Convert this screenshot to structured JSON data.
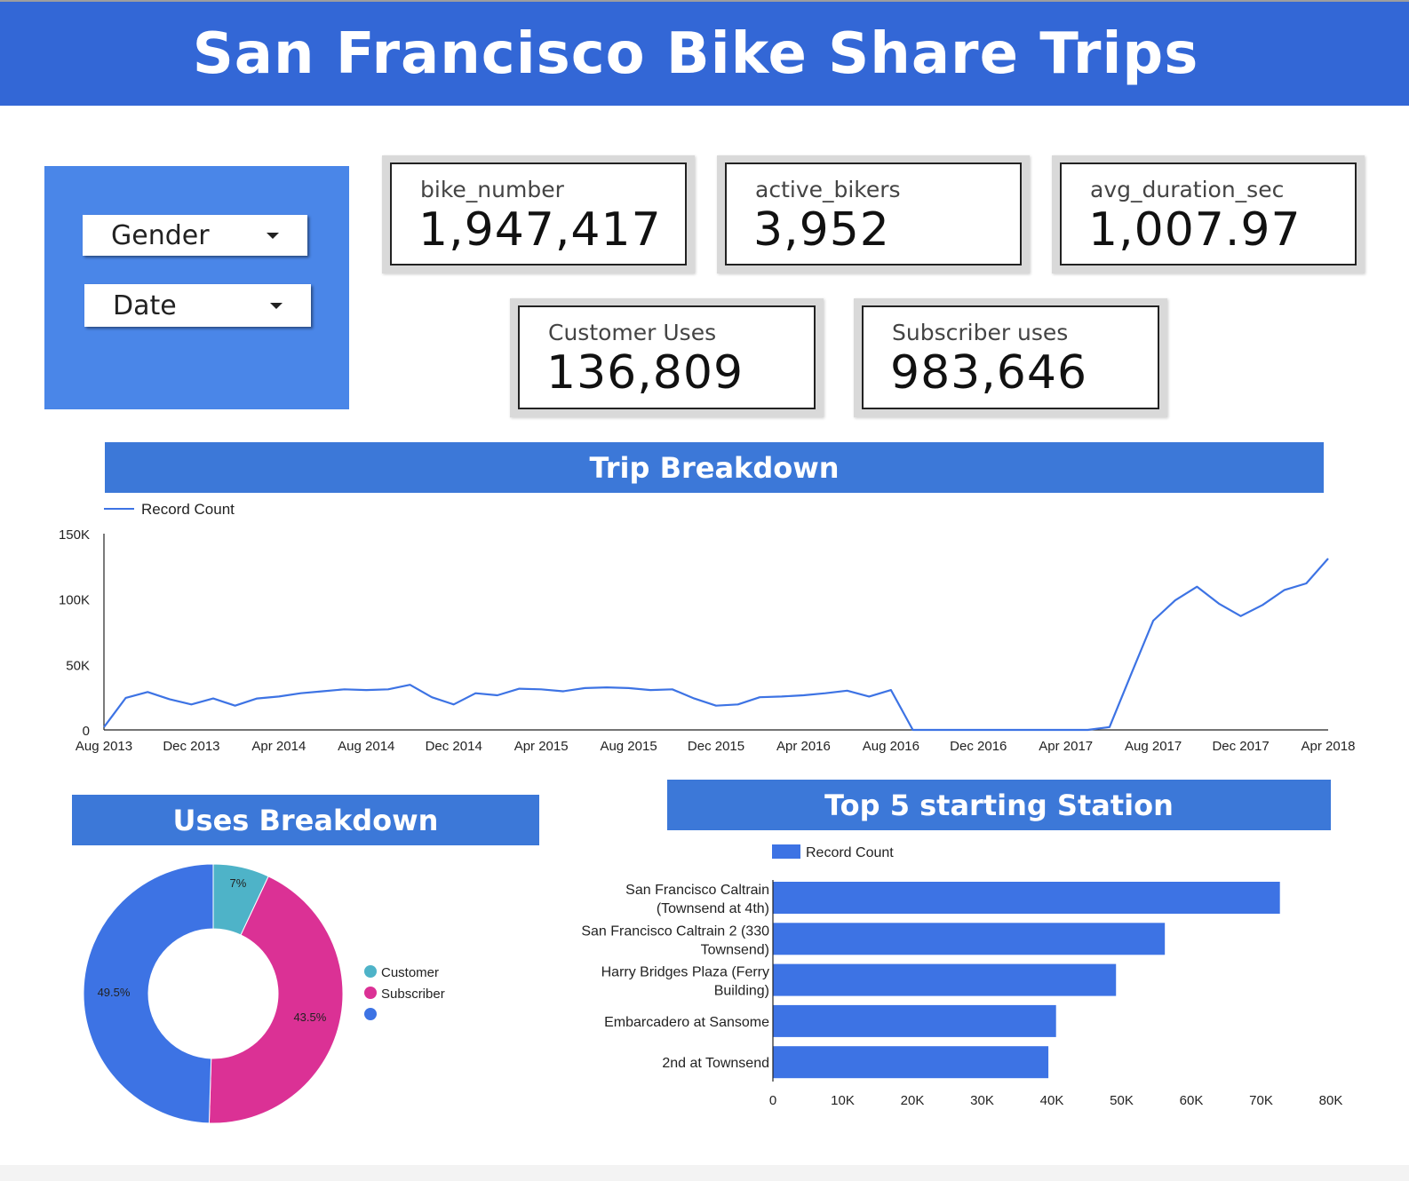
{
  "header": {
    "title": "San Francisco Bike Share Trips"
  },
  "filters": {
    "gender_label": "Gender",
    "date_label": "Date"
  },
  "kpis": [
    {
      "label": "bike_number",
      "value": "1,947,417"
    },
    {
      "label": "active_bikers",
      "value": "3,952"
    },
    {
      "label": "avg_duration_sec",
      "value": "1,007.97"
    },
    {
      "label": "Customer Uses",
      "value": "136,809"
    },
    {
      "label": "Subscriber uses",
      "value": "983,646"
    }
  ],
  "sections": {
    "trip_title": "Trip Breakdown",
    "uses_title": "Uses Breakdown",
    "stations_title": "Top 5 starting Station"
  },
  "colors": {
    "primary": "#3367d6",
    "banner": "#3c78d8",
    "customer": "#4eb3c8",
    "subscriber": "#db3195",
    "series": "#3d73e4"
  },
  "chart_data": [
    {
      "type": "line",
      "title": "Trip Breakdown",
      "legend": "Record Count",
      "x_ticks": [
        "Aug 2013",
        "Dec 2013",
        "Apr 2014",
        "Aug 2014",
        "Dec 2014",
        "Apr 2015",
        "Aug 2015",
        "Dec 2015",
        "Apr 2016",
        "Aug 2016",
        "Dec 2016",
        "Apr 2017",
        "Aug 2017",
        "Dec 2017",
        "Apr 2018"
      ],
      "y_ticks": [
        "0",
        "50K",
        "100K",
        "150K"
      ],
      "ylim": [
        0,
        150000
      ],
      "series": [
        {
          "name": "Record Count",
          "values": [
            2100,
            24500,
            29000,
            23500,
            19500,
            24000,
            18500,
            24000,
            25500,
            28000,
            29500,
            31000,
            30500,
            31000,
            34500,
            25000,
            19500,
            28000,
            26500,
            31500,
            31000,
            29500,
            32000,
            32500,
            32000,
            30500,
            31000,
            24000,
            18500,
            19500,
            25000,
            25500,
            26500,
            28000,
            30000,
            25500,
            30500,
            0,
            0,
            0,
            0,
            0,
            0,
            0,
            0,
            0,
            2200,
            43000,
            83500,
            99000,
            109500,
            96500,
            87000,
            95500,
            107000,
            112000,
            131000
          ]
        }
      ]
    },
    {
      "type": "pie",
      "title": "Uses Breakdown",
      "slices": [
        {
          "label": "Customer",
          "value": 7,
          "display": "7%"
        },
        {
          "label": "Subscriber",
          "value": 43.5,
          "display": "43.5%"
        },
        {
          "label": "",
          "value": 49.5,
          "display": "49.5%"
        }
      ]
    },
    {
      "type": "bar",
      "title": "Top 5 starting Station",
      "legend": "Record Count",
      "categories": [
        [
          "San Francisco Caltrain",
          "(Townsend at 4th)"
        ],
        [
          "San Francisco Caltrain 2 (330",
          "Townsend)"
        ],
        [
          "Harry Bridges Plaza (Ferry",
          "Building)"
        ],
        [
          "Embarcadero at Sansome"
        ],
        [
          "2nd at Townsend"
        ]
      ],
      "values": [
        72700,
        56200,
        49200,
        40600,
        39500
      ],
      "x_ticks": [
        "0",
        "10K",
        "20K",
        "30K",
        "40K",
        "50K",
        "60K",
        "70K",
        "80K"
      ],
      "xlim": [
        0,
        80000
      ]
    }
  ]
}
